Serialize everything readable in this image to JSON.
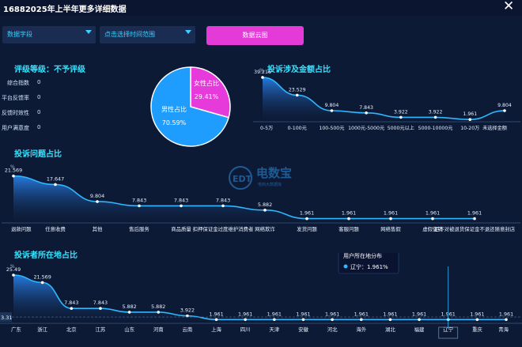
{
  "window": {
    "title": "16882025年上半年更多详细数据"
  },
  "filters": {
    "field_select": "数据字段",
    "time_select": "点击选择时间范围"
  },
  "actions": {
    "word_cloud": "数据云图"
  },
  "rating": {
    "heading": "评级等级：不予评级",
    "stats": [
      {
        "label": "综合指数",
        "value": "0"
      },
      {
        "label": "平台反馈率",
        "value": "0"
      },
      {
        "label": "反馈时效性",
        "value": "0"
      },
      {
        "label": "用户满意度",
        "value": "0"
      }
    ]
  },
  "watermark": {
    "brand": "电数宝",
    "tagline": "电商大数据库"
  },
  "chart_data": [
    {
      "type": "pie",
      "labels": [
        "女性占比",
        "男性占比"
      ],
      "values": [
        29.41,
        70.59
      ],
      "value_labels": [
        "29.41%",
        "70.59%"
      ],
      "colors": [
        "#e63adb",
        "#1f9dff"
      ]
    },
    {
      "type": "area",
      "title": "投诉涉及金额占比",
      "ylabel": "%",
      "categories": [
        "0-5万",
        "0-100元",
        "100-500元",
        "1000元-5000元",
        "5000元以上",
        "5000-10000元",
        "10-20万",
        "未选择金额"
      ],
      "values": [
        39.216,
        23.529,
        9.804,
        7.843,
        3.922,
        3.922,
        1.961,
        9.804
      ],
      "value_labels": [
        "39.216",
        "23.529",
        "9.804",
        "7.843",
        "3.922",
        "3.922",
        "1.961",
        "9.804"
      ],
      "ylim": [
        0,
        42
      ],
      "color": "#2fb7ff"
    },
    {
      "type": "area",
      "title": "投诉问题占比",
      "ylabel": "%",
      "categories": [
        "退款问题",
        "任意收费",
        "其他",
        "售后服务",
        "商品质量",
        "扣押保证金过度维护消费者",
        "网络欺诈",
        "发货问题",
        "客服问题",
        "网络售假",
        "虚假促销",
        "拒不对被退货保证金不退还随意封店"
      ],
      "values": [
        21.569,
        17.647,
        9.804,
        7.843,
        7.843,
        7.843,
        5.882,
        1.961,
        1.961,
        1.961,
        1.961,
        1.961
      ],
      "value_labels": [
        "21.569",
        "17.647",
        "9.804",
        "7.843",
        "7.843",
        "7.843",
        "5.882",
        "1.961",
        "1.961",
        "1.961",
        "1.961",
        "1.961"
      ],
      "ylim": [
        0,
        24
      ],
      "color": "#2fb7ff"
    },
    {
      "type": "area",
      "title": "投诉者所在地占比",
      "ylabel": "%",
      "categories": [
        "广东",
        "浙江",
        "北京",
        "江苏",
        "山东",
        "河南",
        "云南",
        "上海",
        "四川",
        "天津",
        "安徽",
        "河北",
        "海外",
        "湖北",
        "福建",
        "辽宁",
        "重庆",
        "青海"
      ],
      "values": [
        25.49,
        21.569,
        7.843,
        7.843,
        5.882,
        5.882,
        3.922,
        1.961,
        1.961,
        1.961,
        1.961,
        1.961,
        1.961,
        1.961,
        1.961,
        1.961,
        1.961,
        1.961
      ],
      "value_labels": [
        "25.49",
        "21.569",
        "7.843",
        "7.843",
        "5.882",
        "5.882",
        "3.922",
        "1.961",
        "1.961",
        "1.961",
        "1.961",
        "1.961",
        "1.961",
        "1.961",
        "1.961",
        "1.961",
        "1.961",
        "1.961"
      ],
      "ylim": [
        0,
        28
      ],
      "color": "#2fb7ff",
      "crosshair_value": "3.31",
      "tooltip": {
        "title": "用户所在地分布",
        "item": "辽宁",
        "value": "1.961%"
      }
    }
  ]
}
